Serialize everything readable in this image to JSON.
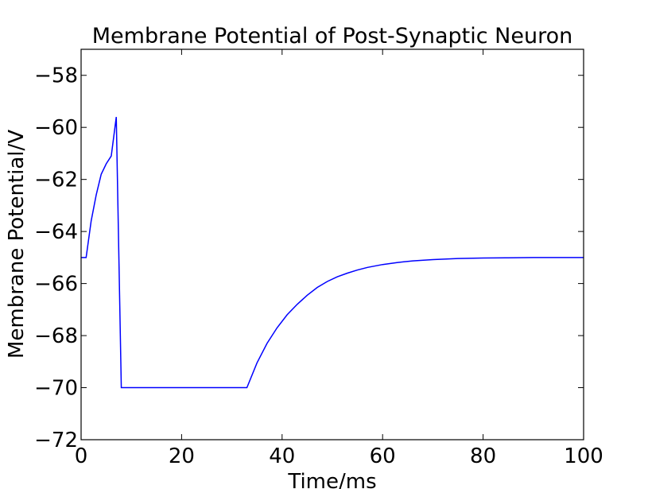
{
  "chart_data": {
    "type": "line",
    "title": "Membrane Potential of Post-Synaptic Neuron",
    "xlabel": "Time/ms",
    "ylabel": "Membrane Potential/V",
    "xlim": [
      0,
      100
    ],
    "ylim": [
      -72,
      -57
    ],
    "x_ticks": [
      0,
      20,
      40,
      60,
      80,
      100
    ],
    "y_ticks": [
      -72,
      -70,
      -68,
      -66,
      -64,
      -62,
      -60,
      -58
    ],
    "x_tick_labels": [
      "0",
      "20",
      "40",
      "60",
      "80",
      "100"
    ],
    "y_tick_labels": [
      "−72",
      "−70",
      "−68",
      "−66",
      "−64",
      "−62",
      "−60",
      "−58"
    ],
    "grid": false,
    "line_color": "#0000ff",
    "series": [
      {
        "x": [
          0,
          1,
          2,
          3,
          4,
          5,
          6,
          7,
          8,
          33,
          35,
          37,
          39,
          41,
          43,
          45,
          47,
          49,
          51,
          53,
          55,
          57,
          60,
          63,
          66,
          70,
          75,
          80,
          85,
          90,
          95,
          100
        ],
        "values": [
          -65.0,
          -65.0,
          -63.6,
          -62.6,
          -61.8,
          -61.4,
          -61.1,
          -59.6,
          -70.0,
          -70.0,
          -69.05,
          -68.3,
          -67.7,
          -67.2,
          -66.8,
          -66.45,
          -66.15,
          -65.92,
          -65.74,
          -65.6,
          -65.48,
          -65.38,
          -65.27,
          -65.19,
          -65.13,
          -65.08,
          -65.04,
          -65.02,
          -65.01,
          -65.0,
          -65.0,
          -65.0
        ]
      }
    ]
  }
}
